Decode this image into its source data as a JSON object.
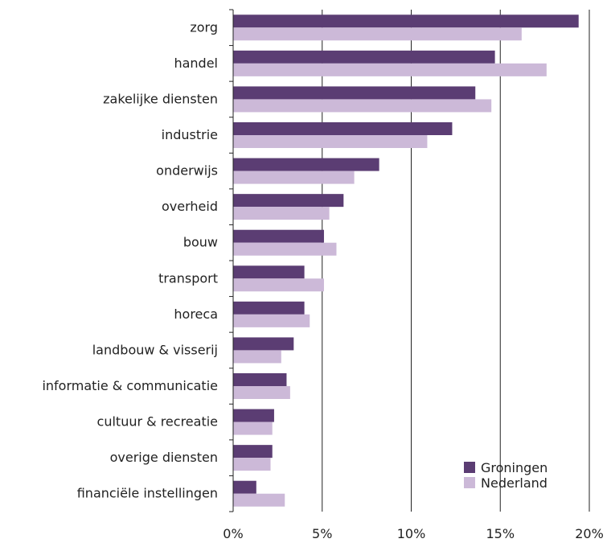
{
  "chart_data": {
    "type": "bar",
    "orientation": "horizontal",
    "title": "",
    "xlabel": "",
    "ylabel": "",
    "xlim": [
      0,
      20
    ],
    "x_ticks": [
      "0%",
      "5%",
      "10%",
      "15%",
      "20%"
    ],
    "grid": "vertical",
    "legend_position": "bottom-right",
    "categories": [
      "zorg",
      "handel",
      "zakelijke diensten",
      "industrie",
      "onderwijs",
      "overheid",
      "bouw",
      "transport",
      "horeca",
      "landbouw & visserij",
      "informatie & communicatie",
      "cultuur & recreatie",
      "overige diensten",
      "financiële instellingen"
    ],
    "series": [
      {
        "name": "Groningen",
        "color": "#5b3d73",
        "values": [
          19.4,
          14.7,
          13.6,
          12.3,
          8.2,
          6.2,
          5.1,
          4.0,
          4.0,
          3.4,
          3.0,
          2.3,
          2.2,
          1.3
        ]
      },
      {
        "name": "Nederland",
        "color": "#ccb9d8",
        "values": [
          16.2,
          17.6,
          14.5,
          10.9,
          6.8,
          5.4,
          5.8,
          5.1,
          4.3,
          2.7,
          3.2,
          2.2,
          2.1,
          2.9
        ]
      }
    ]
  }
}
